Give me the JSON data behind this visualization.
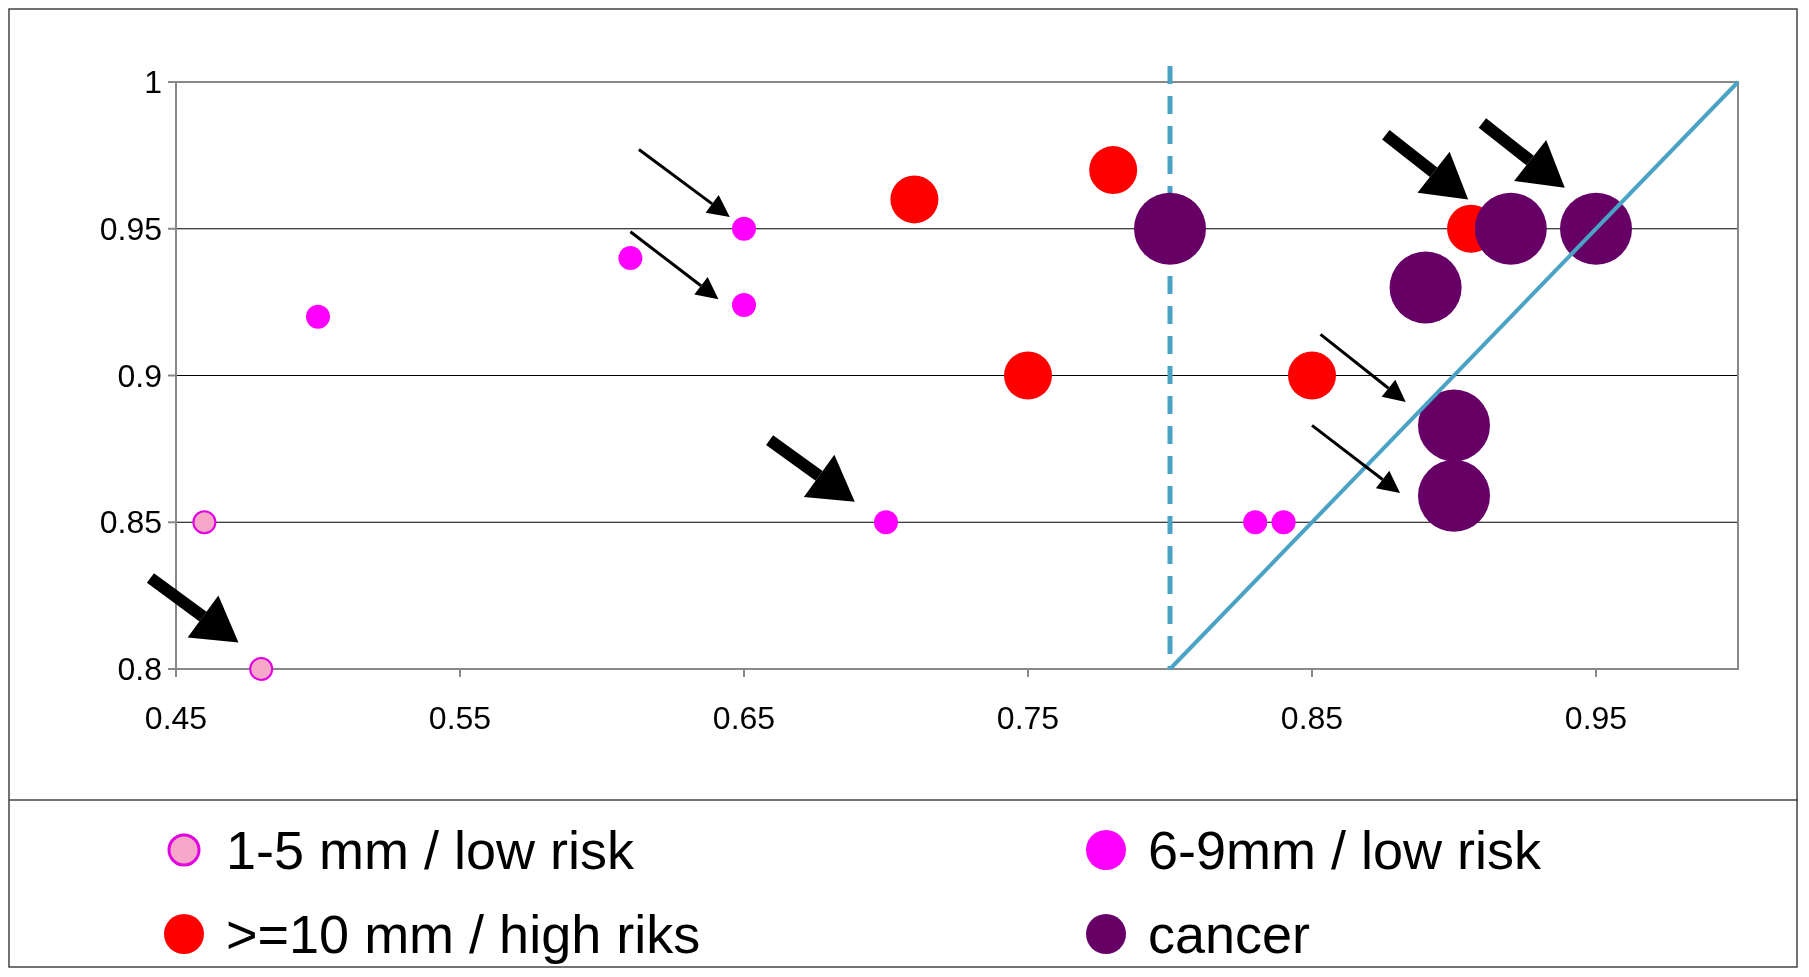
{
  "chart_data": {
    "type": "scatter",
    "series": [
      {
        "name": "1-5 mm / low risk",
        "color": "#f7a8c8",
        "x": [
          0.46,
          0.48
        ],
        "values": [
          0.85,
          0.8
        ]
      },
      {
        "name": "6-9mm / low risk",
        "color": "#ff00ff",
        "x": [
          0.5,
          0.61,
          0.65,
          0.65,
          0.7,
          0.83,
          0.84
        ],
        "values": [
          0.92,
          0.94,
          0.95,
          0.924,
          0.85,
          0.85,
          0.85
        ]
      },
      {
        "name": ">=10 mm / high riks",
        "color": "#ff0000",
        "x": [
          0.71,
          0.78,
          0.75,
          0.85,
          0.906
        ],
        "values": [
          0.96,
          0.97,
          0.9,
          0.9,
          0.95
        ]
      },
      {
        "name": "cancer",
        "color": "#660066",
        "x": [
          0.8,
          0.89,
          0.9,
          0.9,
          0.92,
          0.95
        ],
        "values": [
          0.95,
          0.93,
          0.883,
          0.859,
          0.95,
          0.95
        ]
      },
      {
        "type": "line",
        "marker": "none",
        "color": "#4aa3c4",
        "x": [
          0.8,
          1.0
        ],
        "values": [
          0.8,
          1.0
        ]
      }
    ],
    "xlim": [
      0.45,
      1.0
    ],
    "xticks": [
      0.45,
      0.55,
      0.65,
      0.75,
      0.85,
      0.95
    ],
    "ylim": [
      0.8,
      1.0
    ],
    "yticks": [
      0.8,
      0.85,
      0.9,
      0.95,
      1
    ],
    "ref_lines": [
      {
        "axis": "x",
        "value": 0.8,
        "color": "#4aa3c4",
        "line_style": "dashed"
      }
    ],
    "grid": "y",
    "legend": "bottom",
    "marker": "circle"
  }
}
